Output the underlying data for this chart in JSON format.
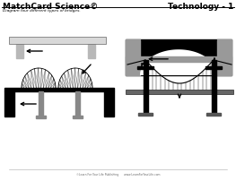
{
  "title_left": "MatchCard Science©",
  "title_right": "Technology - 1",
  "subtitle": "Diagram four different types of bridges.",
  "footer": "©Learn For Your Life Publishing      www.LearnForYourLife.com",
  "bg_color": "#ffffff"
}
